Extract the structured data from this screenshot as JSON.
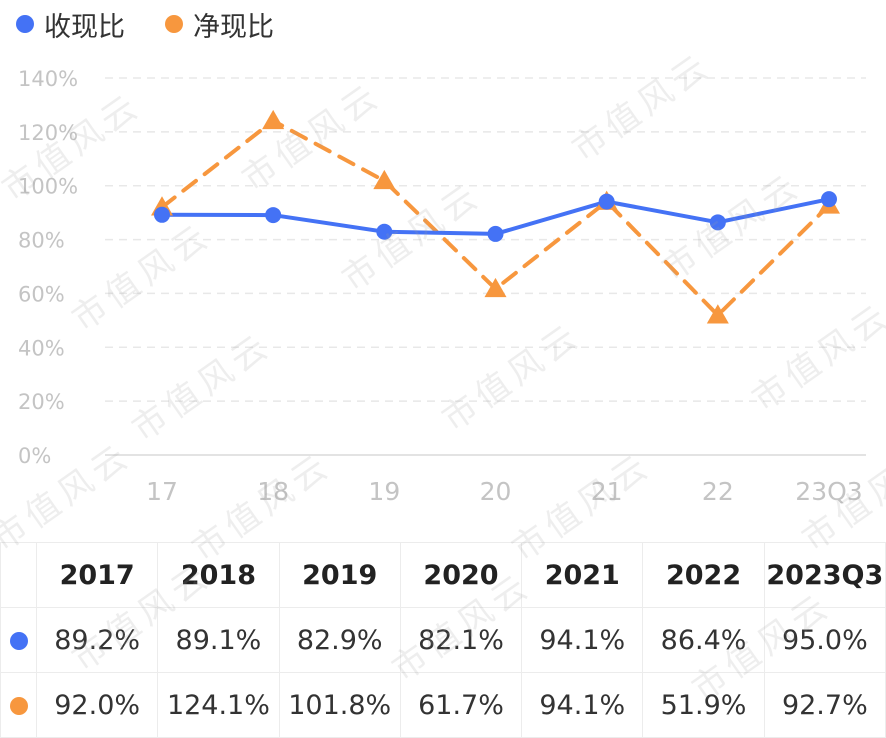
{
  "legend": [
    {
      "label": "收现比",
      "color": "#4472F5"
    },
    {
      "label": "净现比",
      "color": "#F7973E"
    }
  ],
  "chart_data": {
    "type": "line",
    "categories": [
      "17",
      "18",
      "19",
      "20",
      "21",
      "22",
      "23Q3"
    ],
    "y_ticks": [
      "0%",
      "20%",
      "40%",
      "60%",
      "80%",
      "100%",
      "120%",
      "140%"
    ],
    "ylim": [
      0,
      140
    ],
    "grid": true,
    "legend_position": "top-left",
    "series": [
      {
        "name": "收现比",
        "color": "#4472F5",
        "marker": "circle",
        "style": "solid",
        "values": [
          89.2,
          89.1,
          82.9,
          82.1,
          94.1,
          86.4,
          95.0
        ]
      },
      {
        "name": "净现比",
        "color": "#F7973E",
        "marker": "triangle",
        "style": "dashed",
        "values": [
          92.0,
          124.1,
          101.8,
          61.7,
          94.1,
          51.9,
          92.7
        ]
      }
    ]
  },
  "table": {
    "headers": [
      "2017",
      "2018",
      "2019",
      "2020",
      "2021",
      "2022",
      "2023Q3"
    ],
    "rows": [
      {
        "color": "#4472F5",
        "cells": [
          "89.2%",
          "89.1%",
          "82.9%",
          "82.1%",
          "94.1%",
          "86.4%",
          "95.0%"
        ]
      },
      {
        "color": "#F7973E",
        "cells": [
          "92.0%",
          "124.1%",
          "101.8%",
          "61.7%",
          "94.1%",
          "51.9%",
          "92.7%"
        ]
      }
    ]
  },
  "watermark": "市值风云"
}
